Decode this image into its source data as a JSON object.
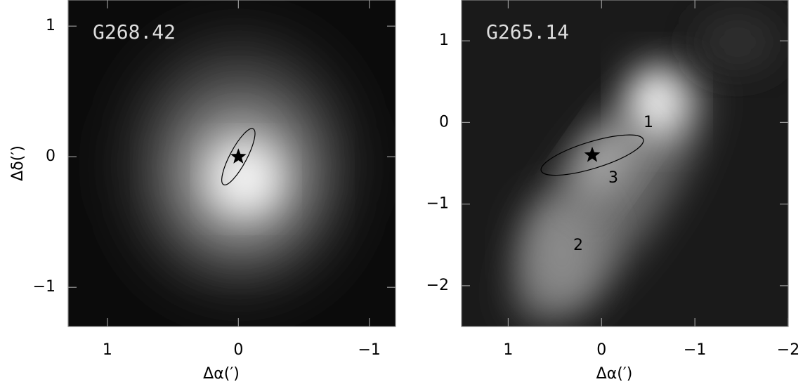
{
  "chart_data": [
    {
      "type": "image",
      "title": "G268.42",
      "x_label": "Δα(′)",
      "y_label": "Δδ(′)",
      "xlim": [
        1.3,
        -1.2
      ],
      "ylim": [
        -1.3,
        1.2
      ],
      "xticks": [
        1,
        0,
        {
          "value": -1,
          "label": "−1"
        }
      ],
      "yticks": [
        {
          "value": -1,
          "label": "−1"
        },
        0,
        1
      ],
      "source": {
        "x": 0,
        "y": 0
      }
    },
    {
      "type": "image",
      "title": "G265.14",
      "x_label": "Δα(′)",
      "xlim": [
        1.5,
        -2
      ],
      "ylim": [
        -2.5,
        1.5
      ],
      "xticks": [
        1,
        0,
        {
          "value": -1,
          "label": "−1"
        },
        {
          "value": -2,
          "label": "−2"
        }
      ],
      "yticks": [
        {
          "value": -2,
          "label": "−2"
        },
        {
          "value": -1,
          "label": "−1"
        },
        0,
        1
      ],
      "source": {
        "x": 0.1,
        "y": -0.4
      },
      "annotations": [
        "1",
        "2",
        "3"
      ]
    }
  ]
}
